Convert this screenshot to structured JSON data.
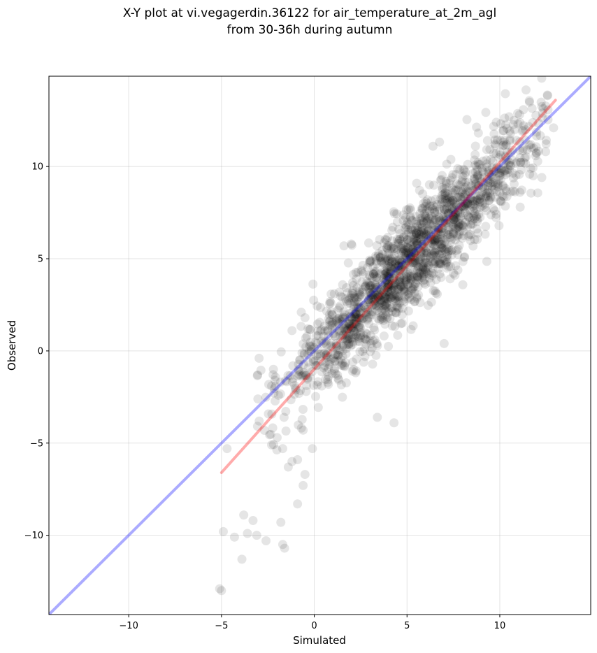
{
  "chart_data": {
    "type": "scatter",
    "title_line1": "X-Y plot at vi.vegagerdin.36122 for air_temperature_at_2m_agl",
    "title_line2": "from 30-36h during autumn",
    "xlabel": "Simulated",
    "ylabel": "Observed",
    "xlim": [
      -14.3,
      14.9
    ],
    "ylim": [
      -14.3,
      14.9
    ],
    "xticks": [
      -10,
      -5,
      0,
      5,
      10
    ],
    "yticks": [
      -10,
      -5,
      0,
      5,
      10
    ],
    "xtick_labels": [
      "−10",
      "−5",
      "0",
      "5",
      "10"
    ],
    "ytick_labels": [
      "−10",
      "−5",
      "0",
      "5",
      "10"
    ],
    "grid": true,
    "point_color": "#000000",
    "point_alpha": 0.1,
    "fit_line": {
      "color": "#ff0000",
      "x": [
        -5.0,
        13.0
      ],
      "y": [
        -6.6,
        13.6
      ]
    },
    "identity_line": {
      "color": "#0000ff",
      "x": [
        -14.3,
        14.9
      ],
      "y": [
        -14.3,
        14.9
      ]
    },
    "trend": {
      "slope": 1.02,
      "intercept": -0.4,
      "noise": 1.35,
      "x_mean": 5.2,
      "x_sd": 3.4
    },
    "outliers": [
      [
        -5.0,
        -13.0
      ],
      [
        -5.1,
        -12.9
      ],
      [
        -4.9,
        -9.8
      ],
      [
        -4.7,
        -5.3
      ],
      [
        -4.3,
        -10.1
      ],
      [
        -3.9,
        -11.3
      ],
      [
        -3.8,
        -8.9
      ],
      [
        -3.6,
        -9.9
      ],
      [
        -3.3,
        -9.2
      ],
      [
        -3.1,
        -10.0
      ],
      [
        -2.6,
        -10.3
      ],
      [
        -1.7,
        -10.5
      ],
      [
        -1.6,
        -10.7
      ],
      [
        -1.8,
        -9.3
      ],
      [
        -1.2,
        -6.0
      ],
      [
        -0.9,
        -8.3
      ],
      [
        -0.6,
        -7.3
      ],
      [
        -0.9,
        -5.9
      ],
      [
        -0.5,
        -6.7
      ],
      [
        -1.4,
        -6.3
      ],
      [
        -2.3,
        -5.1
      ],
      [
        -2.0,
        -4.7
      ],
      [
        -1.7,
        -5.3
      ],
      [
        -2.2,
        -1.0
      ],
      [
        -2.3,
        -1.9
      ],
      [
        -0.6,
        -4.3
      ],
      [
        -0.1,
        -5.3
      ],
      [
        -1.2,
        1.1
      ],
      [
        -0.7,
        2.1
      ],
      [
        -0.5,
        1.8
      ],
      [
        11.1,
        7.8
      ],
      [
        12.9,
        12.1
      ],
      [
        10.5,
        12.7
      ],
      [
        4.3,
        -3.9
      ],
      [
        7.0,
        0.4
      ],
      [
        3.4,
        -3.6
      ],
      [
        2.0,
        5.8
      ],
      [
        1.6,
        5.7
      ],
      [
        6.4,
        11.1
      ],
      [
        7.5,
        4.2
      ]
    ]
  }
}
